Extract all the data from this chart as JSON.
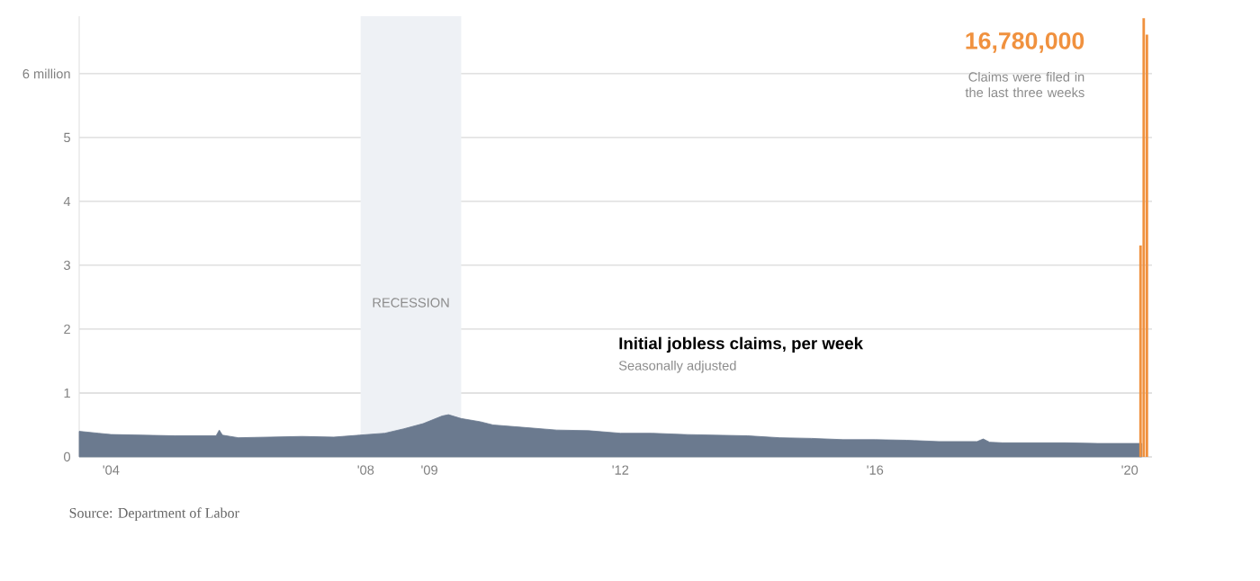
{
  "chart_data": {
    "type": "area",
    "title": "Initial jobless claims, per week",
    "subtitle": "Seasonally adjusted",
    "annotations": [
      "16,780,000",
      "Claims were filed in the last three weeks",
      "Source: Department of Labor"
    ],
    "xlim": [
      2003.5,
      2020.35
    ],
    "ylim": [
      0,
      6.9
    ],
    "xticks": [
      {
        "value": 2004,
        "label": "'04"
      },
      {
        "value": 2005,
        "label": null
      },
      {
        "value": 2006,
        "label": null
      },
      {
        "value": 2007,
        "label": null
      },
      {
        "value": 2008,
        "label": "'08"
      },
      {
        "value": 2009,
        "label": "'09"
      },
      {
        "value": 2010,
        "label": null
      },
      {
        "value": 2011,
        "label": null
      },
      {
        "value": 2012,
        "label": "'12"
      },
      {
        "value": 2013,
        "label": null
      },
      {
        "value": 2014,
        "label": null
      },
      {
        "value": 2015,
        "label": null
      },
      {
        "value": 2016,
        "label": "'16"
      },
      {
        "value": 2017,
        "label": null
      },
      {
        "value": 2018,
        "label": null
      },
      {
        "value": 2019,
        "label": null
      },
      {
        "value": 2020,
        "label": "'20"
      }
    ],
    "yticks": [
      0,
      1,
      2,
      3,
      4,
      5,
      {
        "value": 6,
        "label": "6 million"
      }
    ],
    "grid": "y",
    "bands": [
      {
        "axis": "x",
        "from": 2007.92,
        "to": 2009.5,
        "label": "RECESSION",
        "color": "#eef1f5"
      }
    ],
    "series": [
      {
        "color": "#6b7a8f",
        "x": [
          2003.5,
          2003.8,
          2004.0,
          2004.5,
          2005.0,
          2005.65,
          2005.7,
          2005.75,
          2006.0,
          2006.5,
          2007.0,
          2007.5,
          2007.9,
          2008.3,
          2008.6,
          2008.9,
          2009.2,
          2009.3,
          2009.5,
          2009.8,
          2010.0,
          2010.5,
          2011.0,
          2011.5,
          2012.0,
          2012.5,
          2013.0,
          2013.5,
          2014.0,
          2014.5,
          2015.0,
          2015.5,
          2016.0,
          2016.5,
          2017.0,
          2017.6,
          2017.7,
          2017.8,
          2018.0,
          2018.5,
          2019.0,
          2019.5,
          2020.0,
          2020.19
        ],
        "values": [
          0.4,
          0.37,
          0.35,
          0.34,
          0.33,
          0.33,
          0.42,
          0.34,
          0.3,
          0.31,
          0.32,
          0.31,
          0.34,
          0.37,
          0.44,
          0.52,
          0.64,
          0.66,
          0.6,
          0.55,
          0.5,
          0.46,
          0.42,
          0.41,
          0.37,
          0.37,
          0.35,
          0.34,
          0.33,
          0.3,
          0.29,
          0.27,
          0.27,
          0.26,
          0.24,
          0.24,
          0.28,
          0.23,
          0.22,
          0.22,
          0.22,
          0.21,
          0.21,
          0.21
        ]
      },
      {
        "type": "bar",
        "color": "#f0913e",
        "x": [
          2020.17,
          2020.22,
          2020.27
        ],
        "values": [
          3.31,
          6.87,
          6.61
        ]
      }
    ]
  }
}
